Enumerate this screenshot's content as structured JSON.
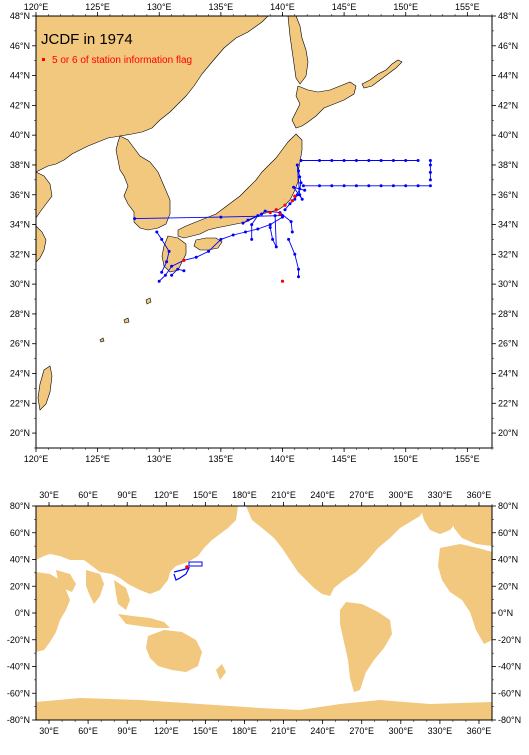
{
  "colors": {
    "land": "#f2c77e",
    "sea": "#ffffff",
    "track": "#0000ff",
    "flag": "#ff0000",
    "frame": "#000000"
  },
  "top_map": {
    "title": "JCDF in 1974",
    "legend_label": "5 or 6 of station information flag",
    "lon_range": [
      120,
      157
    ],
    "lat_range": [
      19,
      48
    ],
    "lon_ticks": [
      "120°E",
      "125°E",
      "130°E",
      "135°E",
      "140°E",
      "145°E",
      "150°E",
      "155°E"
    ],
    "lat_ticks": [
      "20°N",
      "22°N",
      "24°N",
      "26°N",
      "28°N",
      "30°N",
      "32°N",
      "34°N",
      "36°N",
      "38°N",
      "40°N",
      "42°N",
      "44°N",
      "46°N",
      "48°N"
    ]
  },
  "bottom_map": {
    "lon_range": [
      20,
      370
    ],
    "lat_range": [
      -80,
      80
    ],
    "lon_ticks": [
      "30°E",
      "60°E",
      "90°E",
      "120°E",
      "150°E",
      "180°E",
      "210°E",
      "240°E",
      "270°E",
      "300°E",
      "330°E",
      "360°E"
    ],
    "lat_ticks": [
      "80°N",
      "60°N",
      "40°N",
      "20°N",
      "0°N",
      "-20°N",
      "-40°N",
      "-60°N",
      "-80°N"
    ]
  },
  "stations": {
    "track": [
      [
        128.0,
        34.4
      ],
      [
        135.0,
        34.5
      ],
      [
        140.0,
        34.6
      ],
      [
        130.0,
        30.2
      ],
      [
        130.5,
        30.6
      ],
      [
        131.0,
        31.2
      ],
      [
        132.0,
        31.6
      ],
      [
        133.0,
        31.8
      ],
      [
        134.0,
        32.2
      ],
      [
        135.0,
        33.0
      ],
      [
        136.0,
        33.3
      ],
      [
        137.0,
        33.5
      ],
      [
        138.0,
        33.7
      ],
      [
        139.0,
        34.0
      ],
      [
        140.0,
        34.5
      ],
      [
        130.2,
        30.8
      ],
      [
        130.6,
        31.5
      ],
      [
        130.8,
        32.2
      ],
      [
        130.2,
        33.0
      ],
      [
        129.8,
        33.5
      ],
      [
        131.0,
        30.6
      ],
      [
        131.5,
        31.0
      ],
      [
        132.0,
        30.9
      ],
      [
        137.5,
        33.0
      ],
      [
        137.5,
        34.0
      ],
      [
        138.0,
        34.6
      ],
      [
        139.0,
        33.8
      ],
      [
        139.2,
        33.0
      ],
      [
        139.5,
        32.5
      ],
      [
        139.4,
        34.6
      ],
      [
        140.2,
        35.0
      ],
      [
        140.6,
        35.4
      ],
      [
        141.0,
        35.7
      ],
      [
        141.2,
        36.0
      ],
      [
        141.4,
        36.4
      ],
      [
        141.5,
        36.8
      ],
      [
        141.4,
        37.2
      ],
      [
        141.3,
        37.6
      ],
      [
        141.2,
        38.0
      ],
      [
        141.4,
        36.0
      ],
      [
        141.6,
        35.7
      ],
      [
        140.9,
        36.5
      ],
      [
        141.8,
        36.3
      ],
      [
        141.7,
        36.6
      ],
      [
        143.0,
        36.6
      ],
      [
        144.0,
        36.6
      ],
      [
        145.0,
        36.6
      ],
      [
        146.0,
        36.6
      ],
      [
        147.0,
        36.6
      ],
      [
        148.0,
        36.6
      ],
      [
        149.0,
        36.6
      ],
      [
        150.0,
        36.6
      ],
      [
        151.0,
        36.6
      ],
      [
        152.0,
        36.6
      ],
      [
        152.0,
        37.0
      ],
      [
        152.0,
        37.5
      ],
      [
        152.0,
        38.0
      ],
      [
        152.0,
        38.3
      ],
      [
        151.0,
        38.3
      ],
      [
        150.0,
        38.3
      ],
      [
        149.0,
        38.3
      ],
      [
        148.0,
        38.3
      ],
      [
        147.0,
        38.3
      ],
      [
        146.0,
        38.3
      ],
      [
        145.0,
        38.3
      ],
      [
        144.0,
        38.3
      ],
      [
        143.0,
        38.3
      ],
      [
        141.5,
        38.3
      ],
      [
        140.5,
        33.0
      ],
      [
        141.0,
        32.0
      ],
      [
        141.3,
        31.0
      ],
      [
        141.3,
        30.5
      ],
      [
        140.8,
        33.5
      ],
      [
        140.7,
        34.2
      ],
      [
        139.8,
        34.8
      ],
      [
        138.6,
        34.9
      ],
      [
        138.3,
        34.7
      ],
      [
        137.2,
        34.3
      ],
      [
        136.8,
        34.1
      ]
    ],
    "flagged": [
      [
        140.0,
        30.2
      ],
      [
        132.0,
        31.6
      ],
      [
        139.0,
        34.8
      ],
      [
        139.5,
        35.0
      ],
      [
        140.2,
        35.3
      ],
      [
        140.8,
        35.6
      ],
      [
        141.0,
        35.9
      ],
      [
        139.8,
        34.7
      ]
    ]
  }
}
